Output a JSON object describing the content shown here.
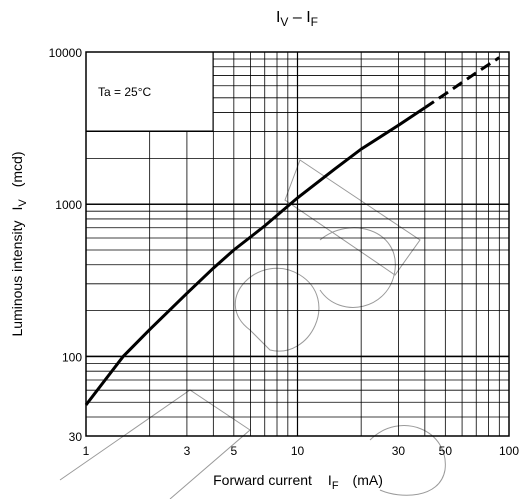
{
  "chart_data": {
    "type": "line",
    "title": "I",
    "title_sub_v": "V",
    "title_dash": " – I",
    "title_sub_f": "F",
    "xlabel": "Forward current",
    "xlabel_symbol": "I",
    "xlabel_symbol_sub": "F",
    "xlabel_unit": "(mA)",
    "ylabel": "Luminous intensity",
    "ylabel_symbol": "I",
    "ylabel_symbol_sub": "V",
    "ylabel_unit": "(mcd)",
    "x_scale": "log",
    "y_scale": "log",
    "xlim": [
      1,
      100
    ],
    "ylim": [
      30,
      10000
    ],
    "x_ticks": [
      {
        "value": 1,
        "label": "1"
      },
      {
        "value": 3,
        "label": "3"
      },
      {
        "value": 5,
        "label": "5"
      },
      {
        "value": 10,
        "label": "10"
      },
      {
        "value": 30,
        "label": "30"
      },
      {
        "value": 50,
        "label": "50"
      },
      {
        "value": 100,
        "label": "100"
      }
    ],
    "y_ticks": [
      {
        "value": 30,
        "label": "30"
      },
      {
        "value": 100,
        "label": "100"
      },
      {
        "value": 1000,
        "label": "1000"
      },
      {
        "value": 10000,
        "label": "10000"
      }
    ],
    "grid": true,
    "annotation": "Ta = 25°C",
    "series": [
      {
        "style": "solid",
        "x": [
          1,
          1.5,
          2,
          3,
          4,
          5,
          7,
          10,
          15,
          20,
          30,
          40
        ],
        "y": [
          48,
          100,
          150,
          260,
          380,
          500,
          720,
          1100,
          1700,
          2300,
          3300,
          4300
        ]
      },
      {
        "style": "dashed",
        "x": [
          40,
          50,
          70,
          90
        ],
        "y": [
          4300,
          5300,
          7300,
          9200
        ]
      }
    ],
    "watermark": "Obsolete"
  }
}
